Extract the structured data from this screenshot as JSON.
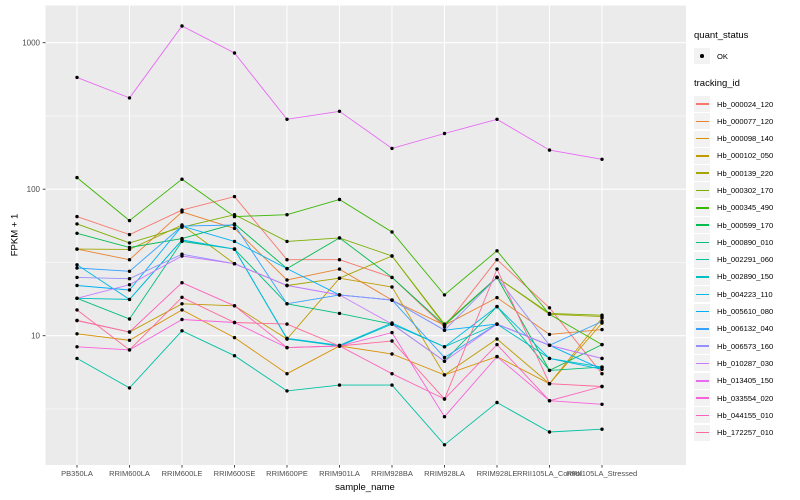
{
  "chart_data": {
    "type": "line",
    "title": "",
    "xlabel": "sample_name",
    "ylabel": "FPKM + 1",
    "y_scale": "log10",
    "ylim": [
      1.3,
      1780
    ],
    "y_major_ticks": [
      10,
      100,
      1000
    ],
    "y_minor_ticks": [
      3.162,
      31.62,
      316.2
    ],
    "grid": true,
    "legend_position": "right",
    "point_color": "#000000",
    "x_categories": [
      "PB350LA",
      "RRIM600LA",
      "RRIM600LE",
      "RRIM600SE",
      "RRIM600PE",
      "RRIM901LA",
      "RRIM928BA",
      "RRIM928LA",
      "RRIM928LE",
      "RRII105LA_Control",
      "RRII105LA_Stressed"
    ],
    "series": [
      {
        "id": "Hb_000024_120",
        "color": "#F8766D",
        "values": [
          65,
          49,
          72,
          89,
          33,
          33,
          25,
          11.5,
          33,
          15.5,
          5.5
        ]
      },
      {
        "id": "Hb_000077_120",
        "color": "#EA8331",
        "values": [
          39,
          33,
          70,
          54,
          24,
          28.5,
          17.5,
          11.8,
          18.2,
          10.2,
          11
        ]
      },
      {
        "id": "Hb_000098_140",
        "color": "#D89000",
        "values": [
          10.3,
          9.3,
          15,
          9.7,
          5.5,
          8.5,
          7.5,
          5.4,
          7.2,
          4.7,
          13.2
        ]
      },
      {
        "id": "Hb_000102_050",
        "color": "#C09B00",
        "values": [
          12.7,
          10.6,
          16.5,
          16,
          9.5,
          24.7,
          21.5,
          5.4,
          9.5,
          4.7,
          12.2
        ]
      },
      {
        "id": "Hb_000139_220",
        "color": "#A3A500",
        "values": [
          39,
          38.8,
          57,
          31,
          22,
          24.7,
          35,
          11.8,
          25,
          14,
          13.5
        ]
      },
      {
        "id": "Hb_000302_170",
        "color": "#7CAE00",
        "values": [
          58,
          43,
          55,
          67,
          44,
          46.5,
          35,
          12,
          25,
          14.2,
          13.8
        ]
      },
      {
        "id": "Hb_000345_490",
        "color": "#39B600",
        "values": [
          120,
          61,
          117,
          65,
          67,
          85,
          51,
          19,
          38,
          14,
          8.7
        ]
      },
      {
        "id": "Hb_000599_170",
        "color": "#00BB4E",
        "values": [
          50,
          40,
          46,
          58,
          28.7,
          46.5,
          25,
          11.8,
          25,
          5.8,
          8.7
        ]
      },
      {
        "id": "Hb_000890_010",
        "color": "#00BF7D",
        "values": [
          18,
          13,
          44,
          39,
          16.5,
          14.2,
          12,
          6.7,
          15.8,
          5.8,
          6.1
        ]
      },
      {
        "id": "Hb_002291_060",
        "color": "#00C1A3",
        "values": [
          7,
          4.4,
          10.8,
          7.3,
          4.2,
          4.6,
          4.6,
          1.8,
          3.5,
          2.2,
          2.3
        ]
      },
      {
        "id": "Hb_002890_150",
        "color": "#00BFC4",
        "values": [
          18,
          17.7,
          45,
          39,
          9.5,
          8.5,
          12,
          8.4,
          12,
          7,
          6.1
        ]
      },
      {
        "id": "Hb_004223_110",
        "color": "#00BAE0",
        "values": [
          30.5,
          17.7,
          45,
          39,
          9.6,
          8.6,
          12.2,
          8.4,
          15.8,
          7,
          5.9
        ]
      },
      {
        "id": "Hb_005610_080",
        "color": "#00B0F6",
        "values": [
          22,
          20.5,
          56,
          44,
          28.7,
          19,
          17.5,
          10.9,
          12,
          8.6,
          5.9
        ]
      },
      {
        "id": "Hb_006132_040",
        "color": "#35A2FF",
        "values": [
          29,
          27.5,
          56,
          57,
          16.5,
          19,
          17.5,
          7.1,
          12,
          8.6,
          12.5
        ]
      },
      {
        "id": "Hb_006573_160",
        "color": "#9590FF",
        "values": [
          25,
          24.5,
          36,
          31,
          22,
          19,
          17.5,
          10.9,
          25,
          8.6,
          7
        ]
      },
      {
        "id": "Hb_010287_030",
        "color": "#C77CFF",
        "values": [
          18,
          22.3,
          35,
          31,
          22,
          19,
          12,
          6.7,
          12,
          8.6,
          7
        ]
      },
      {
        "id": "Hb_013405_150",
        "color": "#E76BF3",
        "values": [
          580,
          420,
          1300,
          850,
          300,
          340,
          190,
          240,
          300,
          185,
          160
        ]
      },
      {
        "id": "Hb_033554_020",
        "color": "#FA62DB",
        "values": [
          8.4,
          8,
          12.9,
          12.3,
          8.3,
          8.5,
          10.5,
          2.8,
          7.2,
          3.6,
          3.4
        ]
      },
      {
        "id": "Hb_044155_010",
        "color": "#FF62BC",
        "values": [
          12.7,
          10.6,
          23,
          16,
          8.3,
          8.5,
          5.5,
          3.7,
          8.7,
          3.6,
          4.5
        ]
      },
      {
        "id": "Hb_172257_010",
        "color": "#FF6A98",
        "values": [
          15,
          8,
          18.3,
          12.3,
          12,
          8.5,
          9.2,
          3.7,
          28.5,
          4.7,
          4.5
        ]
      }
    ]
  },
  "legend": {
    "quant_status_title": "quant_status",
    "quant_status_items": [
      {
        "label": "OK",
        "symbol": "point"
      }
    ],
    "tracking_id_title": "tracking_id"
  },
  "theme": {
    "background": "#FFFFFF",
    "panel_background": "#EBEBEB",
    "grid_color": "#FFFFFF",
    "tick_label_color": "#4D4D4D",
    "axis_title_color": "#000000",
    "tick_mark_color": "#333333",
    "legend_key_background": "#F2F2F2"
  }
}
